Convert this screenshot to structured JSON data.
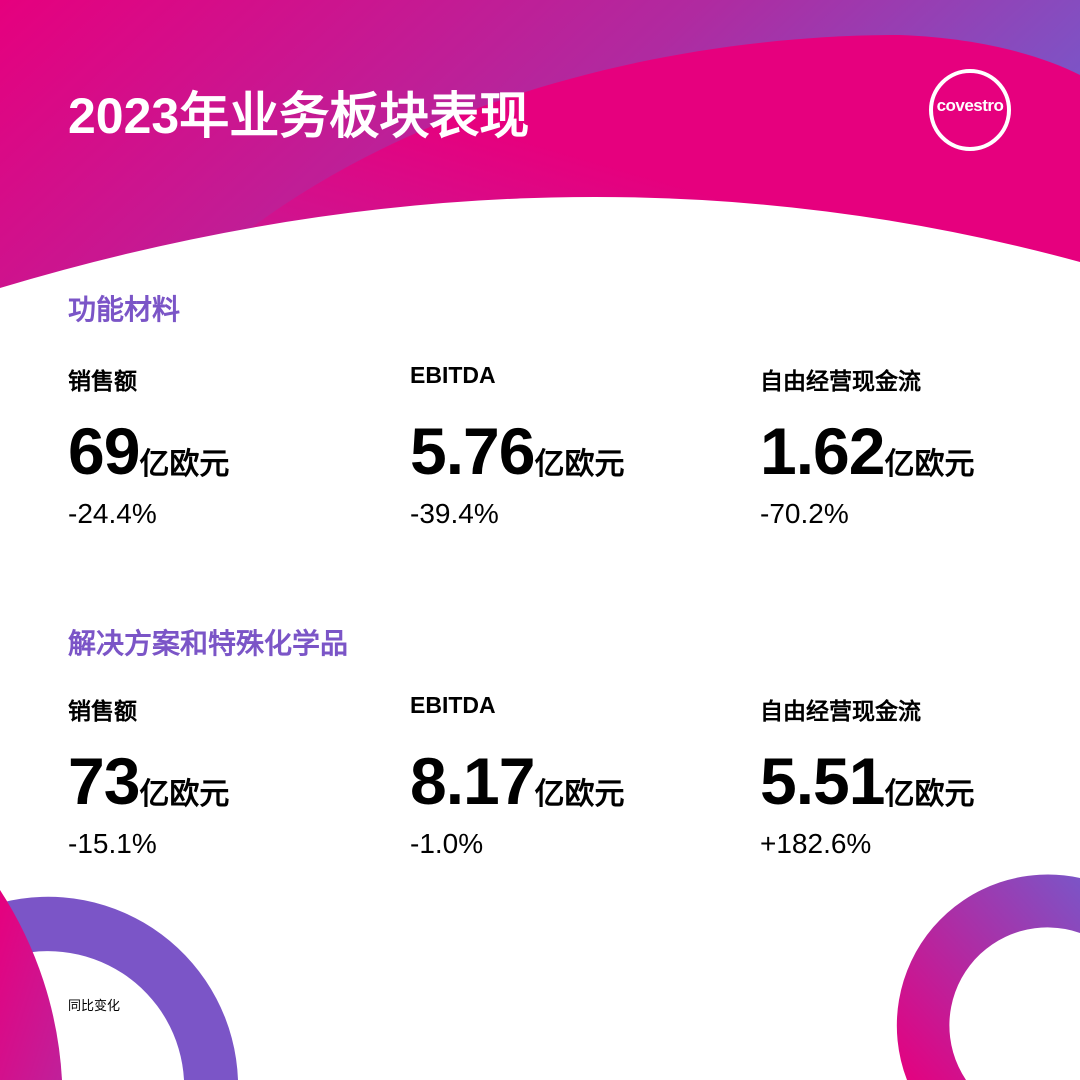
{
  "title": "2023年业务板块表现",
  "logo": {
    "text": "covestro"
  },
  "colors": {
    "magenta": "#e6007e",
    "purple": "#7b55c7"
  },
  "sections": [
    {
      "title": "功能材料",
      "metrics": [
        {
          "label": "销售额",
          "value": "69",
          "unit": "亿欧元",
          "change": "-24.4%"
        },
        {
          "label": "EBITDA",
          "value": "5.76",
          "unit": "亿欧元",
          "change": "-39.4%"
        },
        {
          "label": "自由经营现金流",
          "value": "1.62",
          "unit": "亿欧元",
          "change": "-70.2%"
        }
      ]
    },
    {
      "title": "解决方案和特殊化学品",
      "metrics": [
        {
          "label": "销售额",
          "value": "73",
          "unit": "亿欧元",
          "change": "-15.1%"
        },
        {
          "label": "EBITDA",
          "value": "8.17",
          "unit": "亿欧元",
          "change": "-1.0%"
        },
        {
          "label": "自由经营现金流",
          "value": "5.51",
          "unit": "亿欧元",
          "change": "+182.6%"
        }
      ]
    }
  ],
  "footnote": "同比变化"
}
